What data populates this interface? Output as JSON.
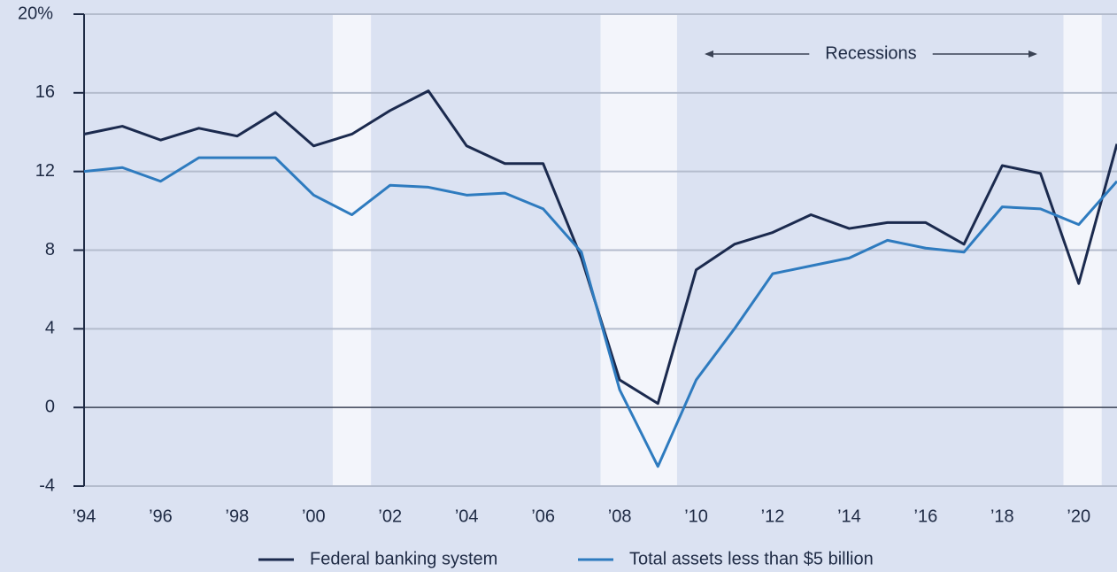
{
  "chart_data": {
    "type": "line",
    "x": [
      1994,
      1995,
      1996,
      1997,
      1998,
      1999,
      2000,
      2001,
      2002,
      2003,
      2004,
      2005,
      2006,
      2007,
      2008,
      2009,
      2010,
      2011,
      2012,
      2013,
      2014,
      2015,
      2016,
      2017,
      2018,
      2019,
      2020,
      2021
    ],
    "series": [
      {
        "name": "Federal banking system",
        "color": "#1b2a4e",
        "values": [
          13.9,
          14.3,
          13.6,
          14.2,
          13.8,
          15.0,
          13.3,
          13.9,
          15.1,
          16.1,
          13.3,
          12.4,
          12.4,
          7.6,
          1.4,
          0.2,
          7.0,
          8.3,
          8.9,
          9.8,
          9.1,
          9.4,
          9.4,
          8.3,
          12.3,
          11.9,
          6.3,
          13.4
        ]
      },
      {
        "name": "Total assets less than $5 billion",
        "color": "#2e7bbf",
        "values": [
          12.0,
          12.2,
          11.5,
          12.7,
          12.7,
          12.7,
          10.8,
          9.8,
          11.3,
          11.2,
          10.8,
          10.9,
          10.1,
          7.9,
          0.9,
          -3.0,
          1.4,
          4.0,
          6.8,
          7.2,
          7.6,
          8.5,
          8.1,
          7.9,
          10.2,
          10.1,
          9.3,
          11.5
        ]
      }
    ],
    "xlim": [
      1994,
      2021
    ],
    "xticks": [
      {
        "value": 1994,
        "label": "’94"
      },
      {
        "value": 1996,
        "label": "’96"
      },
      {
        "value": 1998,
        "label": "’98"
      },
      {
        "value": 2000,
        "label": "’00"
      },
      {
        "value": 2002,
        "label": "’02"
      },
      {
        "value": 2004,
        "label": "’04"
      },
      {
        "value": 2006,
        "label": "’06"
      },
      {
        "value": 2008,
        "label": "’08"
      },
      {
        "value": 2010,
        "label": "’10"
      },
      {
        "value": 2012,
        "label": "’12"
      },
      {
        "value": 2014,
        "label": "’14"
      },
      {
        "value": 2016,
        "label": "’16"
      },
      {
        "value": 2018,
        "label": "’18"
      },
      {
        "value": 2020,
        "label": "’20"
      }
    ],
    "ylim": [
      -4,
      20
    ],
    "yticks": [
      -4,
      0,
      4,
      8,
      12,
      16,
      {
        "value": 20,
        "label": "20%"
      }
    ],
    "grid": true,
    "recessions": [
      [
        2000.5,
        2001.5
      ],
      [
        2007.5,
        2009.5
      ],
      [
        2019.6,
        2020.6
      ]
    ],
    "annotation": "Recessions",
    "legend": "bottom"
  }
}
